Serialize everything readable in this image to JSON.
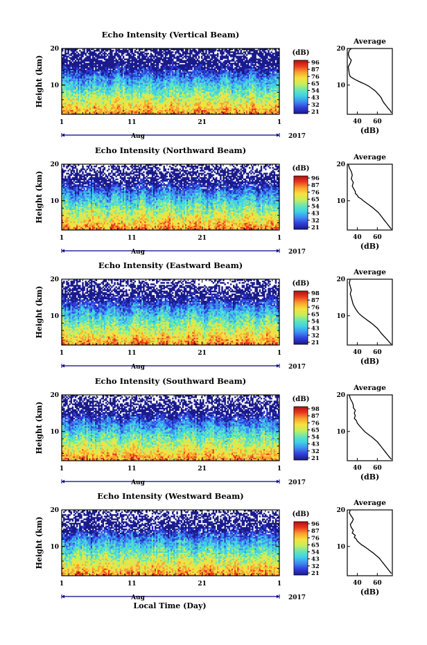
{
  "colors": {
    "colormap": [
      "#1a1a8c",
      "#2f3fd8",
      "#3f8cf0",
      "#3fd0e8",
      "#6ae6b4",
      "#c8ee5a",
      "#f8e040",
      "#f8a030",
      "#e83a20",
      "#b01010"
    ],
    "line": "#000000",
    "axis_accent": "#00008b"
  },
  "footer": {
    "label": "Local Time (Day)"
  },
  "chart_data": [
    {
      "type": "heatmap",
      "title": "Echo Intensity (Vertical Beam)",
      "ylabel": "Height (km)",
      "ylim": [
        2,
        20
      ],
      "yticks": [
        "20",
        "10"
      ],
      "xticks": [
        "1",
        "11",
        "21",
        "1"
      ],
      "month": "Aug",
      "year": "2017",
      "colorbar": {
        "unit": "(dB)",
        "ticks": [
          "96",
          "87",
          "76",
          "65",
          "54",
          "43",
          "32",
          "21"
        ]
      },
      "profile": {
        "title": "Average",
        "xlabel": "(dB)",
        "xticks": [
          "40",
          "60"
        ],
        "xlim": [
          30,
          75
        ],
        "yticks": [
          "20",
          "10"
        ],
        "points": [
          [
            34,
            20
          ],
          [
            32,
            19.5
          ],
          [
            31,
            18.5
          ],
          [
            32,
            17.5
          ],
          [
            34,
            16.8
          ],
          [
            33,
            16
          ],
          [
            31,
            15
          ],
          [
            31.5,
            14
          ],
          [
            32,
            13
          ],
          [
            33,
            12.3
          ],
          [
            36,
            11.8
          ],
          [
            40,
            11.2
          ],
          [
            44,
            10.7
          ],
          [
            48,
            10.2
          ],
          [
            52,
            9.6
          ],
          [
            55,
            9
          ],
          [
            58,
            8.4
          ],
          [
            60,
            7.8
          ],
          [
            62,
            7.2
          ],
          [
            64,
            6.5
          ],
          [
            65,
            5.8
          ],
          [
            67,
            5
          ],
          [
            69,
            4.3
          ],
          [
            71,
            3.6
          ],
          [
            73,
            3
          ],
          [
            74,
            2.4
          ]
        ]
      }
    },
    {
      "type": "heatmap",
      "title": "Echo Intensity (Northward Beam)",
      "ylabel": "Height (km)",
      "ylim": [
        2,
        20
      ],
      "yticks": [
        "20",
        "10"
      ],
      "xticks": [
        "1",
        "11",
        "21",
        "1"
      ],
      "month": "Aug",
      "year": "2017",
      "colorbar": {
        "unit": "(dB)",
        "ticks": [
          "96",
          "87",
          "76",
          "65",
          "54",
          "43",
          "32",
          "21"
        ]
      },
      "profile": {
        "title": "Average",
        "xlabel": "(dB)",
        "xticks": [
          "40",
          "60"
        ],
        "xlim": [
          30,
          75
        ],
        "yticks": [
          "20",
          "10"
        ],
        "points": [
          [
            31,
            20
          ],
          [
            32,
            19
          ],
          [
            34,
            18
          ],
          [
            35,
            17
          ],
          [
            34,
            16
          ],
          [
            36,
            15
          ],
          [
            35,
            14
          ],
          [
            37,
            13
          ],
          [
            38,
            12.5
          ],
          [
            38,
            12
          ],
          [
            40,
            11.5
          ],
          [
            41,
            11
          ],
          [
            44,
            10.5
          ],
          [
            46,
            10
          ],
          [
            49,
            9.4
          ],
          [
            52,
            8.8
          ],
          [
            55,
            8.2
          ],
          [
            58,
            7.5
          ],
          [
            61,
            6.8
          ],
          [
            63,
            6.1
          ],
          [
            65,
            5.4
          ],
          [
            67,
            4.7
          ],
          [
            69,
            4
          ],
          [
            71,
            3.3
          ],
          [
            73,
            2.6
          ],
          [
            74,
            2.2
          ]
        ]
      }
    },
    {
      "type": "heatmap",
      "title": "Echo Intensity (Eastward Beam)",
      "ylabel": "Height (km)",
      "ylim": [
        2,
        20
      ],
      "yticks": [
        "20",
        "10"
      ],
      "xticks": [
        "1",
        "11",
        "21",
        "1"
      ],
      "month": "Aug",
      "year": "2017",
      "colorbar": {
        "unit": "(dB)",
        "ticks": [
          "98",
          "87",
          "76",
          "65",
          "54",
          "43",
          "32",
          "21"
        ]
      },
      "profile": {
        "title": "Average",
        "xlabel": "(dB)",
        "xticks": [
          "40",
          "60"
        ],
        "xlim": [
          30,
          75
        ],
        "yticks": [
          "20",
          "10"
        ],
        "points": [
          [
            33,
            20
          ],
          [
            32,
            19
          ],
          [
            33,
            18
          ],
          [
            34,
            17
          ],
          [
            33,
            16
          ],
          [
            34,
            15
          ],
          [
            35,
            14
          ],
          [
            36,
            13
          ],
          [
            38,
            12
          ],
          [
            40,
            11.2
          ],
          [
            42,
            10.5
          ],
          [
            45,
            9.8
          ],
          [
            48,
            9.2
          ],
          [
            51,
            8.6
          ],
          [
            54,
            8
          ],
          [
            57,
            7.3
          ],
          [
            60,
            6.6
          ],
          [
            62,
            5.9
          ],
          [
            64,
            5.2
          ],
          [
            66,
            4.6
          ],
          [
            68,
            4
          ],
          [
            70,
            3.4
          ],
          [
            72,
            2.8
          ],
          [
            74,
            2.2
          ]
        ]
      }
    },
    {
      "type": "heatmap",
      "title": "Echo Intensity (Southward Beam)",
      "ylabel": "Height (km)",
      "ylim": [
        2,
        20
      ],
      "yticks": [
        "20",
        "10"
      ],
      "xticks": [
        "1",
        "11",
        "21",
        "1"
      ],
      "month": "Aug",
      "year": "2017",
      "colorbar": {
        "unit": "(dB)",
        "ticks": [
          "98",
          "87",
          "76",
          "65",
          "54",
          "43",
          "32",
          "21"
        ]
      },
      "profile": {
        "title": "Average",
        "xlabel": "(dB)",
        "xticks": [
          "40",
          "60"
        ],
        "xlim": [
          30,
          75
        ],
        "yticks": [
          "20",
          "10"
        ],
        "points": [
          [
            32,
            20
          ],
          [
            33,
            19
          ],
          [
            35,
            18
          ],
          [
            36,
            17.2
          ],
          [
            36,
            16.5
          ],
          [
            38,
            15.8
          ],
          [
            37,
            15
          ],
          [
            38,
            14.3
          ],
          [
            37,
            13.6
          ],
          [
            39,
            13
          ],
          [
            40,
            12.3
          ],
          [
            42,
            11.6
          ],
          [
            44,
            11
          ],
          [
            46,
            10.4
          ],
          [
            48,
            9.8
          ],
          [
            51,
            9.2
          ],
          [
            54,
            8.6
          ],
          [
            57,
            7.9
          ],
          [
            60,
            7.2
          ],
          [
            62,
            6.5
          ],
          [
            64,
            5.8
          ],
          [
            66,
            5.1
          ],
          [
            68,
            4.4
          ],
          [
            70,
            3.7
          ],
          [
            72,
            3
          ],
          [
            74,
            2.4
          ]
        ]
      }
    },
    {
      "type": "heatmap",
      "title": "Echo Intensity (Westward Beam)",
      "ylabel": "Height (km)",
      "ylim": [
        2,
        20
      ],
      "yticks": [
        "20",
        "10"
      ],
      "xticks": [
        "1",
        "11",
        "21",
        "1"
      ],
      "month": "Aug",
      "year": "2017",
      "colorbar": {
        "unit": "(dB)",
        "ticks": [
          "96",
          "87",
          "76",
          "65",
          "54",
          "43",
          "32",
          "21"
        ]
      },
      "profile": {
        "title": "Average",
        "xlabel": "(dB)",
        "xticks": [
          "40",
          "60"
        ],
        "xlim": [
          30,
          75
        ],
        "yticks": [
          "20",
          "10"
        ],
        "points": [
          [
            33,
            20
          ],
          [
            32,
            19.2
          ],
          [
            34,
            18.3
          ],
          [
            36,
            17.5
          ],
          [
            35,
            16.8
          ],
          [
            33,
            16
          ],
          [
            34,
            15.2
          ],
          [
            36,
            14.4
          ],
          [
            35,
            13.7
          ],
          [
            38,
            13
          ],
          [
            37,
            12.5
          ],
          [
            39,
            12
          ],
          [
            40,
            11.5
          ],
          [
            42,
            11
          ],
          [
            44,
            10.5
          ],
          [
            47,
            10
          ],
          [
            50,
            9.4
          ],
          [
            53,
            8.8
          ],
          [
            56,
            8.2
          ],
          [
            59,
            7.5
          ],
          [
            62,
            6.8
          ],
          [
            64,
            6.1
          ],
          [
            66,
            5.4
          ],
          [
            68,
            4.7
          ],
          [
            70,
            4
          ],
          [
            72,
            3.3
          ],
          [
            74,
            2.6
          ]
        ]
      }
    }
  ]
}
